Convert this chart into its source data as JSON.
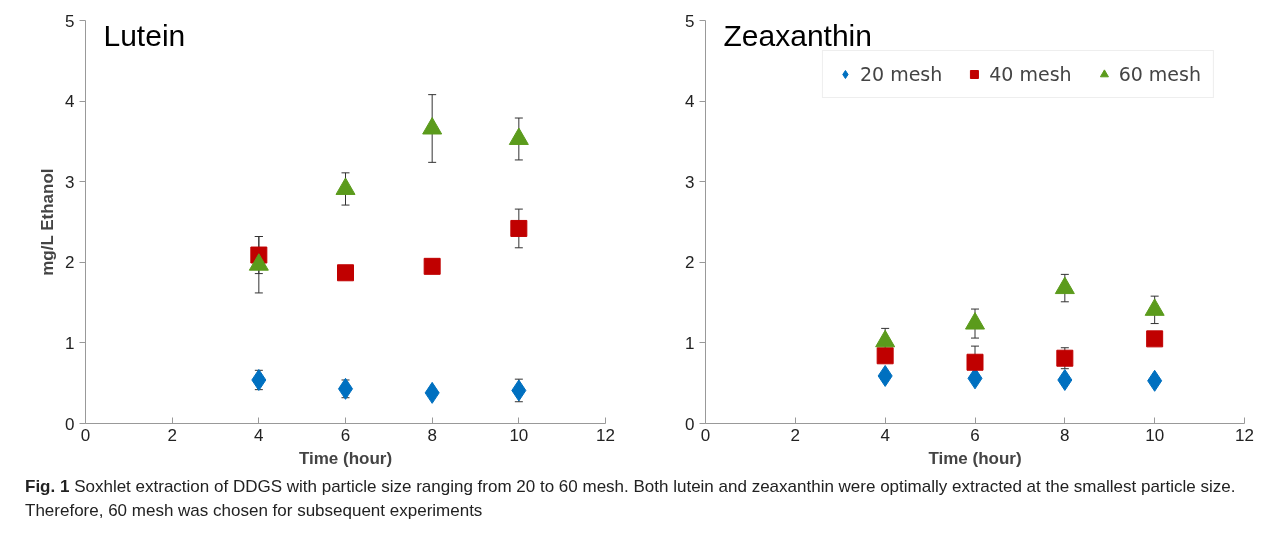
{
  "chart_data": [
    {
      "type": "scatter",
      "title": "Lutein",
      "xlabel": "Time (hour)",
      "ylabel": "mg/L Ethanol",
      "x": [
        4,
        6,
        8,
        10
      ],
      "xlim": [
        0,
        12
      ],
      "xticks": [
        0,
        2,
        4,
        6,
        8,
        10,
        12
      ],
      "ylim": [
        0,
        5
      ],
      "yticks": [
        0,
        1,
        2,
        3,
        4,
        5
      ],
      "grid": false,
      "legend": false,
      "series": [
        {
          "color": "#0070c0",
          "marker": "diamond",
          "values": [
            0.54,
            0.43,
            0.38,
            0.41
          ],
          "errors": [
            0.12,
            0.11,
            null,
            0.14
          ]
        },
        {
          "color": "#c00000",
          "marker": "square",
          "values": [
            2.09,
            1.87,
            1.95,
            2.42
          ],
          "errors": [
            0.23,
            null,
            null,
            0.24
          ]
        },
        {
          "color": "#5b9b1c",
          "marker": "triangle",
          "values": [
            1.97,
            2.91,
            3.66,
            3.53
          ],
          "errors": [
            0.35,
            0.2,
            0.42,
            0.26
          ]
        }
      ],
      "annotations": [
        "Fig. 1  Soxhlet extraction of DDGS with particle size ranging from 20 to 60 mesh. Both lutein and zeaxanthin were optimally extracted at the smallest particle size. Therefore, 60 mesh was chosen for subsequent experiments"
      ]
    },
    {
      "type": "scatter",
      "title": "Zeaxanthin",
      "xlabel": "Time (hour)",
      "x": [
        4,
        6,
        8,
        10
      ],
      "xlim": [
        0,
        12
      ],
      "xticks": [
        0,
        2,
        4,
        6,
        8,
        10,
        12
      ],
      "ylim": [
        0,
        5
      ],
      "yticks": [
        0,
        1,
        2,
        3,
        4,
        5
      ],
      "grid": false,
      "legend": "top right",
      "series": [
        {
          "name": "20 mesh",
          "color": "#0070c0",
          "marker": "diamond",
          "values": [
            0.59,
            0.56,
            0.54,
            0.53
          ]
        },
        {
          "name": "40 mesh",
          "color": "#c00000",
          "marker": "square",
          "values": [
            0.84,
            0.76,
            0.81,
            1.05
          ],
          "errors": [
            null,
            0.2,
            0.13,
            null
          ]
        },
        {
          "name": "60 mesh",
          "color": "#5b9b1c",
          "marker": "triangle",
          "values": [
            1.02,
            1.24,
            1.68,
            1.41
          ],
          "errors": [
            0.16,
            0.18,
            0.17,
            0.17
          ]
        }
      ]
    }
  ]
}
